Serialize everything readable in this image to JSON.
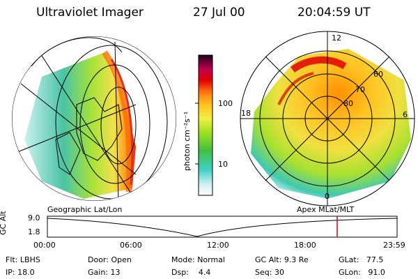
{
  "header": {
    "instrument": "Ultraviolet Imager",
    "date": "27 Jul 00",
    "time": "20:04:59 UT"
  },
  "colorbar": {
    "unit_label": "photon cm⁻²s⁻¹",
    "tick_100": "100",
    "tick_10": "10"
  },
  "polar_map": {
    "mlt_labels": {
      "top": "12",
      "left": "18",
      "right": "6",
      "bottom": "0"
    },
    "lat_labels": [
      "60",
      "70",
      "80"
    ]
  },
  "panel_titles": {
    "left": "Geographic Lat/Lon",
    "right": "Apex MLat/MLT"
  },
  "altitude_plot": {
    "axis_label": "GC Alt",
    "y_max": "9.0",
    "y_min": "1.8",
    "x_ticks": [
      "00:00",
      "06:00",
      "12:00",
      "18:00",
      "23:59"
    ],
    "marker_color": "#e00000"
  },
  "status": {
    "flt_label": "Flt:",
    "flt_value": "LBHS",
    "ip_label": "IP:",
    "ip_value": "18.0",
    "door_label": "Door:",
    "door_value": "Open",
    "gain_label": "Gain:",
    "gain_value": "13",
    "mode_label": "Mode:",
    "mode_value": "Normal",
    "dsp_label": "Dsp:",
    "dsp_value": "4.4",
    "gcalt_label": "GC Alt:",
    "gcalt_value": "9.3 Re",
    "seq_label": "Seq:",
    "seq_value": "30",
    "glat_label": "GLat:",
    "glat_value": "77.5",
    "glon_label": "GLon:",
    "glon_value": "91.0"
  }
}
